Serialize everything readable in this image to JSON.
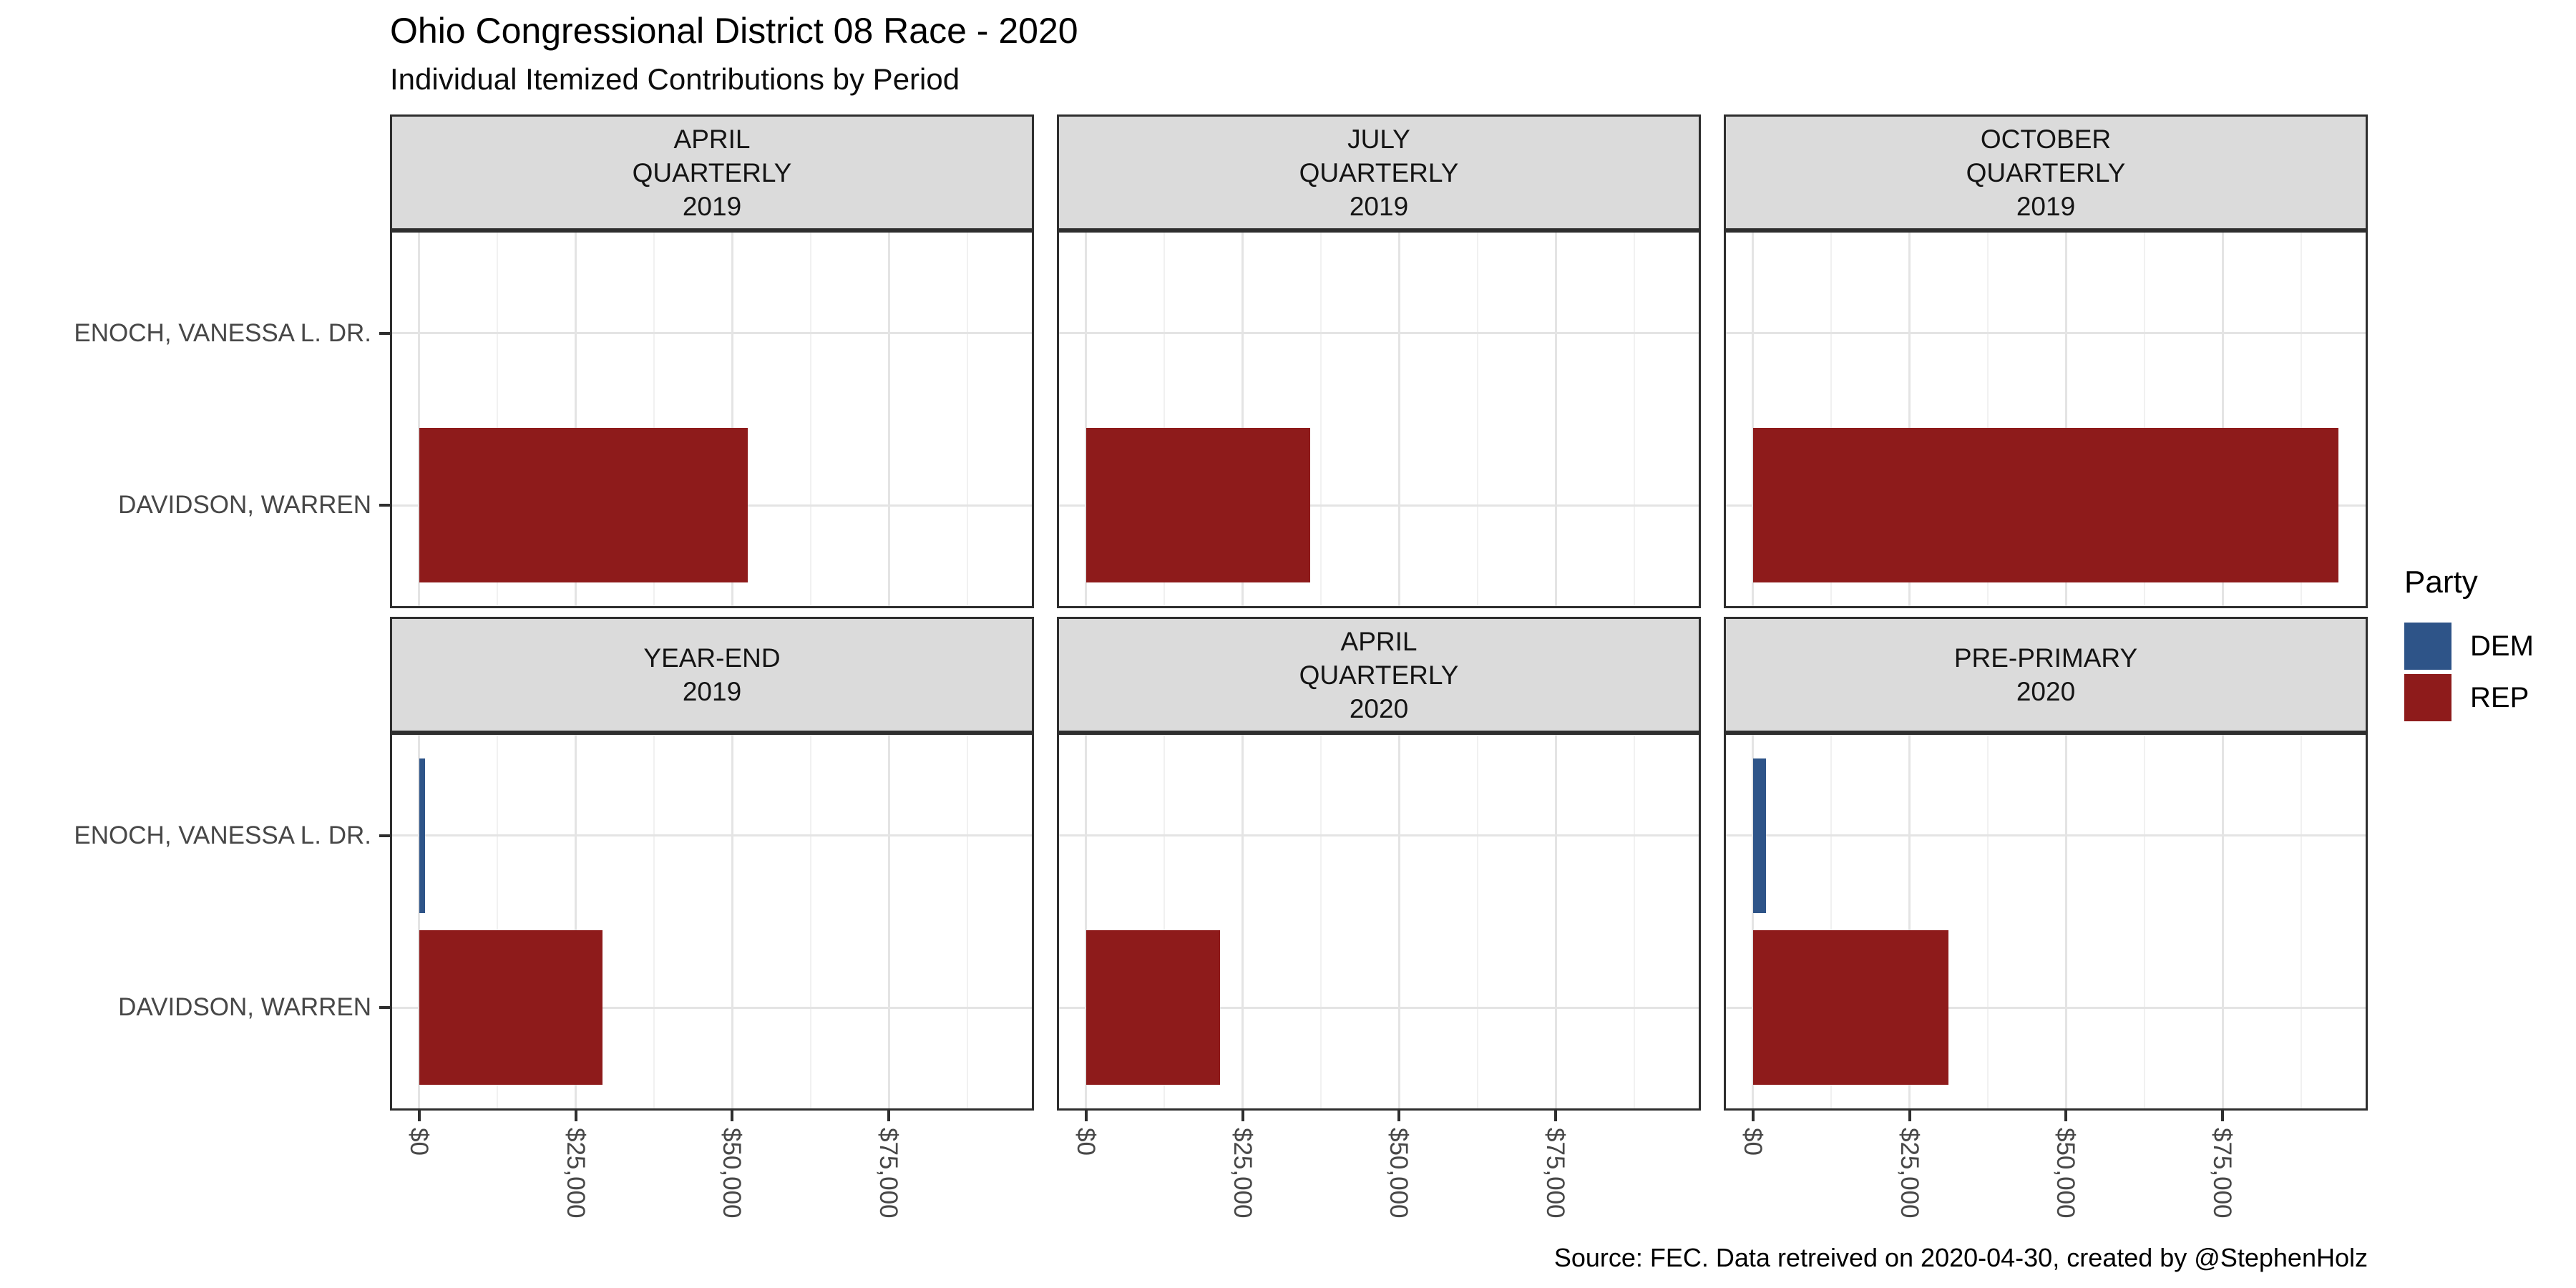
{
  "header": {
    "title": "Ohio Congressional District 08 Race - 2020",
    "subtitle": "Individual Itemized Contributions by Period"
  },
  "caption": "Source: FEC. Data retreived on 2020-04-30, created by @StephenHolz",
  "legend": {
    "title": "Party",
    "items": [
      {
        "label": "DEM",
        "color": "#2E5488"
      },
      {
        "label": "REP",
        "color": "#8E1B1B"
      }
    ]
  },
  "colors": {
    "dem": "#2E5488",
    "rep": "#8E1B1B",
    "strip_background": "#DBDBDB",
    "panel_border": "#2E2E2E",
    "grid_major": "#E4E4E4",
    "grid_minor": "#F1F1F1",
    "axis_text": "#474747"
  },
  "chart_data": {
    "type": "bar",
    "orientation": "horizontal",
    "title": "Ohio Congressional District 08 Race - 2020",
    "subtitle": "Individual Itemized Contributions by Period",
    "legend_title": "Party",
    "legend_entries": [
      "DEM",
      "REP"
    ],
    "categories": [
      "ENOCH, VANESSA L. DR.",
      "DAVIDSON, WARREN"
    ],
    "x_axis": {
      "label_format": "USD",
      "ticks": [
        0,
        25000,
        50000,
        75000
      ],
      "tick_labels": [
        "$0",
        "$25,000",
        "$50,000",
        "$75,000"
      ],
      "display_range": [
        -4675,
        98175
      ],
      "minor_gridlines": [
        12500,
        37500,
        62500,
        87500
      ]
    },
    "grid": true,
    "legend_position": "right",
    "facets": [
      {
        "period_lines": [
          "APRIL",
          "QUARTERLY",
          "2019"
        ],
        "bars": [
          {
            "candidate": "DAVIDSON, WARREN",
            "party": "REP",
            "value": 52500
          }
        ]
      },
      {
        "period_lines": [
          "JULY",
          "QUARTERLY",
          "2019"
        ],
        "bars": [
          {
            "candidate": "DAVIDSON, WARREN",
            "party": "REP",
            "value": 35800
          }
        ]
      },
      {
        "period_lines": [
          "OCTOBER",
          "QUARTERLY",
          "2019"
        ],
        "bars": [
          {
            "candidate": "DAVIDSON, WARREN",
            "party": "REP",
            "value": 93500
          }
        ]
      },
      {
        "period_lines": [
          "YEAR-END",
          "2019"
        ],
        "bars": [
          {
            "candidate": "ENOCH, VANESSA L. DR.",
            "party": "DEM",
            "value": 900
          },
          {
            "candidate": "DAVIDSON, WARREN",
            "party": "REP",
            "value": 29200
          }
        ]
      },
      {
        "period_lines": [
          "APRIL",
          "QUARTERLY",
          "2020"
        ],
        "bars": [
          {
            "candidate": "DAVIDSON, WARREN",
            "party": "REP",
            "value": 21400
          }
        ]
      },
      {
        "period_lines": [
          "PRE-PRIMARY",
          "2020"
        ],
        "bars": [
          {
            "candidate": "ENOCH, VANESSA L. DR.",
            "party": "DEM",
            "value": 2000
          },
          {
            "candidate": "DAVIDSON, WARREN",
            "party": "REP",
            "value": 31200
          }
        ]
      }
    ]
  }
}
